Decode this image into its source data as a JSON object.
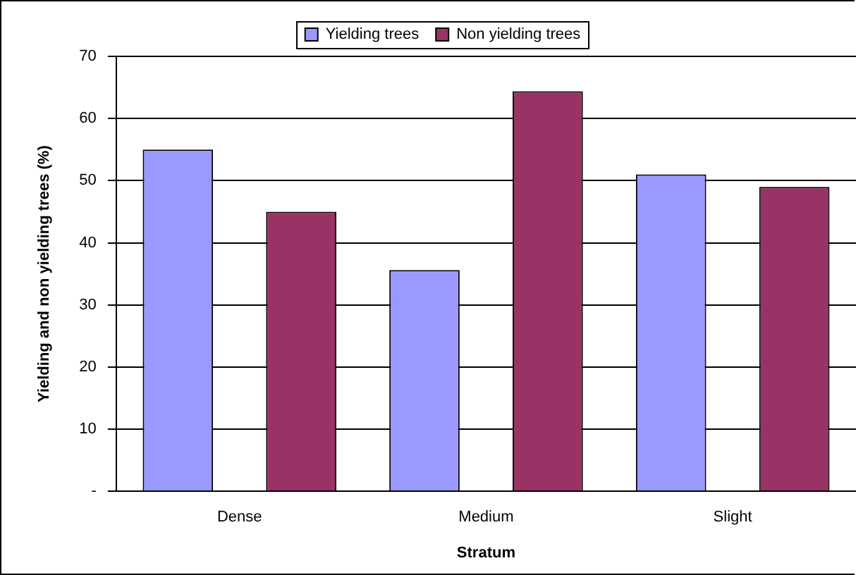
{
  "chart_data": {
    "type": "bar",
    "xlabel": "Stratum",
    "ylabel": "Yielding and non yielding trees (%)",
    "categories": [
      "Dense",
      "Medium",
      "Slight"
    ],
    "series": [
      {
        "name": "Yielding trees",
        "color": "#9999ff",
        "values": [
          55,
          35.6,
          51
        ]
      },
      {
        "name": "Non yielding trees",
        "color": "#993366",
        "values": [
          45,
          64.4,
          49
        ]
      }
    ],
    "ylim": [
      0,
      70
    ],
    "yticks": [
      {
        "value": 0,
        "label": "-"
      },
      10,
      20,
      30,
      40,
      50,
      60,
      70
    ],
    "grid": "y",
    "legend": "top"
  }
}
